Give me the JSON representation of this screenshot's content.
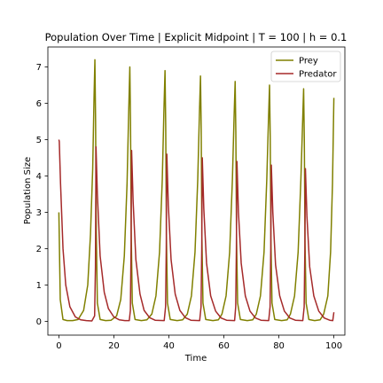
{
  "chart_data": {
    "type": "line",
    "title": "Population Over Time | Explicit Midpoint | T = 100 | h = 0.1",
    "xlabel": "Time",
    "ylabel": "Population Size",
    "xlim": [
      -4,
      104
    ],
    "ylim": [
      -0.38,
      7.55
    ],
    "xticks": [
      0,
      20,
      40,
      60,
      80,
      100
    ],
    "yticks": [
      0,
      1,
      2,
      3,
      4,
      5,
      6,
      7
    ],
    "grid": false,
    "legend_position": "top-right",
    "series": [
      {
        "name": "Prey",
        "color": "#808000",
        "points": [
          [
            0,
            3.0
          ],
          [
            0.5,
            0.6
          ],
          [
            1.5,
            0.05
          ],
          [
            3,
            0.02
          ],
          [
            5,
            0.02
          ],
          [
            7,
            0.05
          ],
          [
            9,
            0.3
          ],
          [
            10.5,
            1.0
          ],
          [
            11.5,
            2.4
          ],
          [
            12.3,
            4.2
          ],
          [
            12.8,
            6.2
          ],
          [
            13.1,
            7.2
          ],
          [
            13.35,
            5.5
          ],
          [
            13.6,
            2.5
          ],
          [
            14.0,
            0.5
          ],
          [
            15,
            0.05
          ],
          [
            17,
            0.02
          ],
          [
            19,
            0.03
          ],
          [
            21,
            0.15
          ],
          [
            22.5,
            0.6
          ],
          [
            23.8,
            1.8
          ],
          [
            24.8,
            3.8
          ],
          [
            25.4,
            5.8
          ],
          [
            25.8,
            7.0
          ],
          [
            26.05,
            5.5
          ],
          [
            26.3,
            2.5
          ],
          [
            26.7,
            0.5
          ],
          [
            27.7,
            0.05
          ],
          [
            30,
            0.02
          ],
          [
            32,
            0.04
          ],
          [
            33.8,
            0.2
          ],
          [
            35.3,
            0.7
          ],
          [
            36.6,
            1.9
          ],
          [
            37.6,
            3.9
          ],
          [
            38.2,
            5.8
          ],
          [
            38.6,
            6.9
          ],
          [
            38.85,
            5.4
          ],
          [
            39.1,
            2.4
          ],
          [
            39.5,
            0.5
          ],
          [
            40.5,
            0.05
          ],
          [
            43,
            0.02
          ],
          [
            45,
            0.04
          ],
          [
            46.7,
            0.2
          ],
          [
            48.2,
            0.7
          ],
          [
            49.5,
            1.9
          ],
          [
            50.5,
            3.9
          ],
          [
            51.1,
            5.7
          ],
          [
            51.5,
            6.75
          ],
          [
            51.75,
            5.3
          ],
          [
            52.0,
            2.4
          ],
          [
            52.4,
            0.5
          ],
          [
            53.4,
            0.05
          ],
          [
            56,
            0.02
          ],
          [
            58,
            0.04
          ],
          [
            59.3,
            0.2
          ],
          [
            60.8,
            0.7
          ],
          [
            62.1,
            1.9
          ],
          [
            63.1,
            3.9
          ],
          [
            63.7,
            5.6
          ],
          [
            64.1,
            6.6
          ],
          [
            64.35,
            5.2
          ],
          [
            64.6,
            2.3
          ],
          [
            65.0,
            0.5
          ],
          [
            66,
            0.05
          ],
          [
            68.5,
            0.02
          ],
          [
            70.5,
            0.04
          ],
          [
            71.8,
            0.2
          ],
          [
            73.3,
            0.7
          ],
          [
            74.6,
            1.9
          ],
          [
            75.6,
            3.9
          ],
          [
            76.2,
            5.5
          ],
          [
            76.6,
            6.5
          ],
          [
            76.85,
            5.1
          ],
          [
            77.1,
            2.3
          ],
          [
            77.5,
            0.5
          ],
          [
            78.5,
            0.05
          ],
          [
            81,
            0.02
          ],
          [
            83,
            0.04
          ],
          [
            84.2,
            0.2
          ],
          [
            85.7,
            0.7
          ],
          [
            87.0,
            1.9
          ],
          [
            88.0,
            3.9
          ],
          [
            88.6,
            5.4
          ],
          [
            89.0,
            6.4
          ],
          [
            89.25,
            5.0
          ],
          [
            89.5,
            2.2
          ],
          [
            89.9,
            0.5
          ],
          [
            90.9,
            0.05
          ],
          [
            93,
            0.02
          ],
          [
            95,
            0.04
          ],
          [
            96.3,
            0.2
          ],
          [
            97.8,
            0.7
          ],
          [
            98.8,
            1.9
          ],
          [
            99.5,
            3.8
          ],
          [
            100,
            6.15
          ]
        ]
      },
      {
        "name": "Predator",
        "color": "#a52a2a",
        "points": [
          [
            0,
            5.0
          ],
          [
            0.15,
            4.95
          ],
          [
            0.6,
            3.8
          ],
          [
            1.5,
            2.0
          ],
          [
            2.5,
            1.0
          ],
          [
            4,
            0.4
          ],
          [
            6,
            0.12
          ],
          [
            8,
            0.04
          ],
          [
            10,
            0.02
          ],
          [
            12,
            0.01
          ],
          [
            13.0,
            0.15
          ],
          [
            13.3,
            1.5
          ],
          [
            13.5,
            4.8
          ],
          [
            14.0,
            3.5
          ],
          [
            15,
            1.8
          ],
          [
            16.5,
            0.8
          ],
          [
            18,
            0.35
          ],
          [
            20,
            0.12
          ],
          [
            22,
            0.04
          ],
          [
            24,
            0.02
          ],
          [
            25.6,
            0.02
          ],
          [
            26.0,
            0.3
          ],
          [
            26.25,
            2.0
          ],
          [
            26.45,
            4.7
          ],
          [
            27.0,
            3.3
          ],
          [
            28,
            1.7
          ],
          [
            29.5,
            0.75
          ],
          [
            31,
            0.3
          ],
          [
            33,
            0.1
          ],
          [
            35,
            0.03
          ],
          [
            38.3,
            0.02
          ],
          [
            38.8,
            0.4
          ],
          [
            39.05,
            2.0
          ],
          [
            39.25,
            4.6
          ],
          [
            39.8,
            3.2
          ],
          [
            40.8,
            1.7
          ],
          [
            42.3,
            0.75
          ],
          [
            44,
            0.3
          ],
          [
            46,
            0.1
          ],
          [
            48,
            0.03
          ],
          [
            51.2,
            0.02
          ],
          [
            51.7,
            0.4
          ],
          [
            51.95,
            2.0
          ],
          [
            52.15,
            4.5
          ],
          [
            52.7,
            3.1
          ],
          [
            53.7,
            1.6
          ],
          [
            55.2,
            0.7
          ],
          [
            57,
            0.28
          ],
          [
            59,
            0.09
          ],
          [
            61,
            0.03
          ],
          [
            63.9,
            0.02
          ],
          [
            64.3,
            0.4
          ],
          [
            64.55,
            2.0
          ],
          [
            64.75,
            4.4
          ],
          [
            65.3,
            3.0
          ],
          [
            66.3,
            1.6
          ],
          [
            67.8,
            0.7
          ],
          [
            69.5,
            0.28
          ],
          [
            71.5,
            0.09
          ],
          [
            73.5,
            0.03
          ],
          [
            76.3,
            0.02
          ],
          [
            76.8,
            0.4
          ],
          [
            77.05,
            2.0
          ],
          [
            77.25,
            4.3
          ],
          [
            77.8,
            3.0
          ],
          [
            78.8,
            1.55
          ],
          [
            80.3,
            0.7
          ],
          [
            82,
            0.28
          ],
          [
            84,
            0.09
          ],
          [
            86,
            0.03
          ],
          [
            88.7,
            0.02
          ],
          [
            89.2,
            0.4
          ],
          [
            89.45,
            2.0
          ],
          [
            89.65,
            4.2
          ],
          [
            90.2,
            2.9
          ],
          [
            91.2,
            1.5
          ],
          [
            92.7,
            0.7
          ],
          [
            94.5,
            0.28
          ],
          [
            96.5,
            0.09
          ],
          [
            98.5,
            0.03
          ],
          [
            99.6,
            0.02
          ],
          [
            100,
            0.25
          ]
        ]
      }
    ]
  }
}
